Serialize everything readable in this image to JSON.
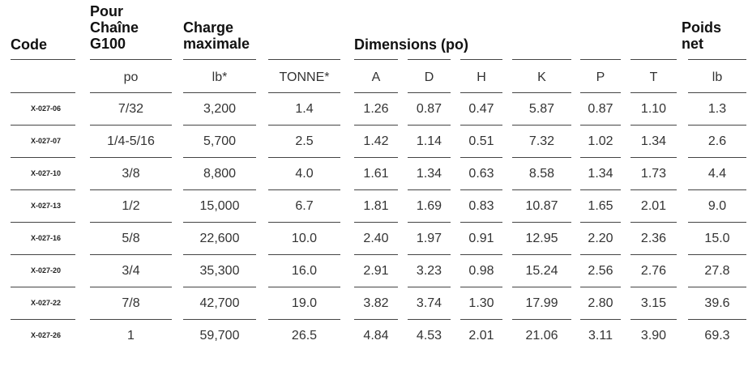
{
  "header": {
    "code": "Code",
    "chain_lines": [
      "Pour",
      "Chaîne",
      "G100"
    ],
    "load_lines": [
      "Charge",
      "maximale"
    ],
    "dimensions": "Dimensions (po)",
    "weight_lines": [
      "Poids",
      "net"
    ]
  },
  "units": [
    "po",
    "lb*",
    "TONNE*",
    "A",
    "D",
    "H",
    "K",
    "P",
    "T",
    "lb"
  ],
  "rows": [
    {
      "code": "X-027-06",
      "cells": [
        "7/32",
        "3,200",
        "1.4",
        "1.26",
        "0.87",
        "0.47",
        "5.87",
        "0.87",
        "1.10",
        "1.3"
      ]
    },
    {
      "code": "X-027-07",
      "cells": [
        "1/4-5/16",
        "5,700",
        "2.5",
        "1.42",
        "1.14",
        "0.51",
        "7.32",
        "1.02",
        "1.34",
        "2.6"
      ]
    },
    {
      "code": "X-027-10",
      "cells": [
        "3/8",
        "8,800",
        "4.0",
        "1.61",
        "1.34",
        "0.63",
        "8.58",
        "1.34",
        "1.73",
        "4.4"
      ]
    },
    {
      "code": "X-027-13",
      "cells": [
        "1/2",
        "15,000",
        "6.7",
        "1.81",
        "1.69",
        "0.83",
        "10.87",
        "1.65",
        "2.01",
        "9.0"
      ]
    },
    {
      "code": "X-027-16",
      "cells": [
        "5/8",
        "22,600",
        "10.0",
        "2.40",
        "1.97",
        "0.91",
        "12.95",
        "2.20",
        "2.36",
        "15.0"
      ]
    },
    {
      "code": "X-027-20",
      "cells": [
        "3/4",
        "35,300",
        "16.0",
        "2.91",
        "3.23",
        "0.98",
        "15.24",
        "2.56",
        "2.76",
        "27.8"
      ]
    },
    {
      "code": "X-027-22",
      "cells": [
        "7/8",
        "42,700",
        "19.0",
        "3.82",
        "3.74",
        "1.30",
        "17.99",
        "2.80",
        "3.15",
        "39.6"
      ]
    },
    {
      "code": "X-027-26",
      "cells": [
        "1",
        "59,700",
        "26.5",
        "4.84",
        "4.53",
        "2.01",
        "21.06",
        "3.11",
        "3.90",
        "69.3"
      ]
    }
  ]
}
